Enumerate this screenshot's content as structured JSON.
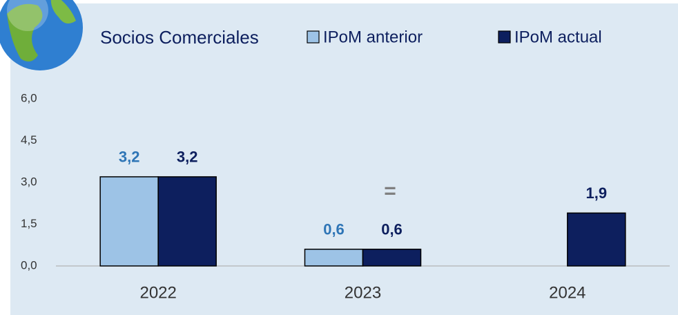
{
  "chart_data": {
    "type": "bar",
    "title": "Socios Comerciales",
    "categories": [
      "2022",
      "2023",
      "2024"
    ],
    "series": [
      {
        "name": "IPoM anterior",
        "color": "#9dc3e6",
        "label_color": "#2e75b6",
        "values": [
          3.2,
          0.6,
          null
        ],
        "value_labels": [
          "3,2",
          "0,6",
          null
        ]
      },
      {
        "name": "IPoM actual",
        "color": "#0d1f5e",
        "label_color": "#0d1f5e",
        "values": [
          3.2,
          0.6,
          1.9
        ],
        "value_labels": [
          "3,2",
          "0,6",
          "1,9"
        ]
      }
    ],
    "annotations": [
      "="
    ],
    "ylim": [
      0,
      6
    ],
    "yticks": [
      {
        "value": 0,
        "label": "0,0"
      },
      {
        "value": 1.5,
        "label": "1,5"
      },
      {
        "value": 3,
        "label": "3,0"
      },
      {
        "value": 4.5,
        "label": "4,5"
      },
      {
        "value": 6,
        "label": "6,0"
      }
    ],
    "grid": false
  }
}
